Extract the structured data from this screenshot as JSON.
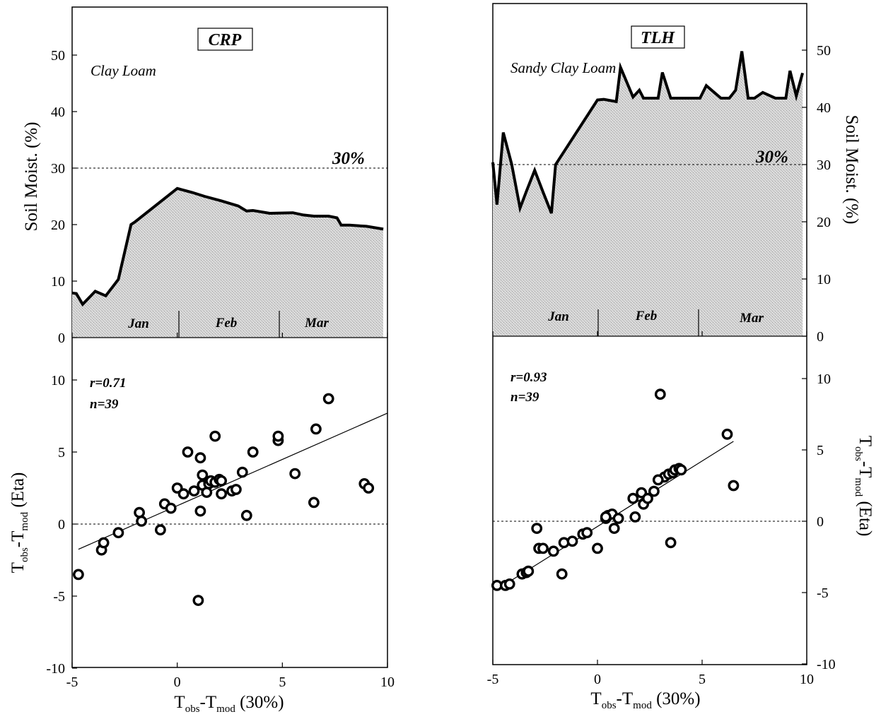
{
  "colors": {
    "ink": "#000000",
    "shade": "#c9c9c9"
  },
  "chart_data": [
    {
      "type": "area",
      "panel": "CRP soil moisture",
      "site_label": "CRP",
      "soil_label": "Clay Loam",
      "ylabel": "Soil Moist. (%)",
      "ylim": [
        0,
        60
      ],
      "yticks": [
        0,
        10,
        20,
        30,
        40,
        50
      ],
      "threshold": 30,
      "threshold_label": "30%",
      "months": [
        "Jan",
        "Feb",
        "Mar"
      ],
      "series": [
        {
          "x": [
            -5.0,
            -4.8,
            -4.5,
            -3.9,
            -3.4,
            -2.8,
            -2.2,
            -2.0,
            0.0,
            0.2,
            0.7,
            1.3,
            2.1,
            2.9,
            3.3,
            3.6,
            4.4,
            5.5,
            6.0,
            6.5,
            7.2,
            7.6,
            7.8,
            8.2,
            9.0,
            9.8
          ],
          "values": [
            7.9,
            7.8,
            5.9,
            8.2,
            7.4,
            10.3,
            20.0,
            20.5,
            26.4,
            26.2,
            25.7,
            25.0,
            24.2,
            23.3,
            22.4,
            22.5,
            22.0,
            22.1,
            21.7,
            21.5,
            21.5,
            21.2,
            19.9,
            19.9,
            19.7,
            19.2
          ]
        }
      ]
    },
    {
      "type": "scatter",
      "panel": "CRP comparison",
      "annotation": [
        "r=0.71",
        "n=39"
      ],
      "xlabel_main": "T",
      "xlabel_sub1": "obs",
      "xlabel_dash": "-T",
      "xlabel_sub2": "mod",
      "xlabel_tail": " (30%)",
      "ylabel_main": "T",
      "ylabel_sub1": "obs",
      "ylabel_dash": "-T",
      "ylabel_sub2": "mod",
      "ylabel_tail": " (Eta)",
      "xlim": [
        -5,
        10
      ],
      "ylim": [
        -10,
        10
      ],
      "xticks": [
        -5,
        0,
        5,
        10
      ],
      "yticks": [
        -10,
        -5,
        0,
        5,
        10
      ],
      "fit": {
        "x": [
          -4.7,
          10
        ],
        "y": [
          -1.75,
          7.7
        ]
      },
      "points": {
        "x": [
          -4.7,
          -3.6,
          -3.5,
          -2.8,
          -1.8,
          -1.7,
          -0.8,
          -0.6,
          -0.3,
          0.0,
          0.3,
          0.5,
          0.8,
          1.0,
          1.1,
          1.2,
          1.1,
          1.2,
          1.4,
          1.5,
          1.6,
          1.8,
          2.0,
          2.1,
          2.1,
          2.6,
          2.8,
          3.1,
          3.3,
          3.6,
          4.8,
          4.8,
          5.6,
          6.5,
          6.6,
          7.2,
          8.9,
          9.1,
          1.8
        ],
        "y": [
          -3.5,
          -1.8,
          -1.3,
          -0.6,
          0.8,
          0.2,
          -0.4,
          1.4,
          1.1,
          2.5,
          2.1,
          5.0,
          2.3,
          -5.3,
          0.9,
          3.4,
          4.6,
          2.7,
          2.2,
          2.8,
          3.0,
          2.9,
          3.1,
          2.1,
          3.0,
          2.3,
          2.4,
          3.6,
          0.6,
          5.0,
          5.8,
          6.1,
          3.5,
          1.5,
          6.6,
          8.7,
          2.8,
          2.5,
          6.1
        ]
      }
    },
    {
      "type": "area",
      "panel": "TLH soil moisture",
      "site_label": "TLH",
      "soil_label": "Sandy Clay Loam",
      "ylabel": "Soil Moist. (%)",
      "ylim": [
        0,
        60
      ],
      "yticks": [
        0,
        10,
        20,
        30,
        40,
        50
      ],
      "threshold": 30,
      "threshold_label": "30%",
      "months": [
        "Jan",
        "Feb",
        "Mar"
      ],
      "series": [
        {
          "x": [
            -5.0,
            -4.8,
            -4.5,
            -4.1,
            -3.7,
            -3.4,
            -3.0,
            -2.6,
            -2.2,
            -2.0,
            0.0,
            0.3,
            0.9,
            1.1,
            1.7,
            2.0,
            2.2,
            2.4,
            2.9,
            3.1,
            3.5,
            4.0,
            4.9,
            5.2,
            5.9,
            6.3,
            6.6,
            6.9,
            7.2,
            7.5,
            7.9,
            8.5,
            9.0,
            9.2,
            9.5,
            9.8
          ],
          "values": [
            30.4,
            23.0,
            35.6,
            30.1,
            22.4,
            25.3,
            29.0,
            25.2,
            21.5,
            30.0,
            41.3,
            41.4,
            41.0,
            47.0,
            41.8,
            43.0,
            41.6,
            41.6,
            41.6,
            46.1,
            41.6,
            41.6,
            41.6,
            43.8,
            41.6,
            41.6,
            43.0,
            49.8,
            41.6,
            41.6,
            42.6,
            41.6,
            41.6,
            46.4,
            42.0,
            46.0
          ]
        }
      ]
    },
    {
      "type": "scatter",
      "panel": "TLH comparison",
      "annotation": [
        "r=0.93",
        "n=39"
      ],
      "xlabel_main": "T",
      "xlabel_sub1": "obs",
      "xlabel_dash": "-T",
      "xlabel_sub2": "mod",
      "xlabel_tail": " (30%)",
      "ylabel_main": "T",
      "ylabel_sub1": "obs",
      "ylabel_dash": "-T",
      "ylabel_sub2": "mod",
      "ylabel_tail": " (Eta)",
      "xlim": [
        -5,
        10
      ],
      "ylim": [
        -10,
        10
      ],
      "xticks": [
        -5,
        0,
        5,
        10
      ],
      "yticks": [
        -10,
        -5,
        0,
        5,
        10
      ],
      "fit": {
        "x": [
          -4.5,
          6.5
        ],
        "y": [
          -4.5,
          5.6
        ]
      },
      "points": {
        "x": [
          -4.8,
          -4.4,
          -4.2,
          -3.6,
          -3.4,
          -3.3,
          -2.9,
          -2.8,
          -2.6,
          -2.1,
          -1.6,
          -1.2,
          -1.7,
          -0.7,
          0.0,
          0.4,
          0.5,
          0.7,
          0.8,
          1.7,
          1.8,
          2.1,
          2.2,
          2.7,
          3.2,
          3.4,
          3.6,
          3.7,
          3.9,
          4.0,
          3.0,
          6.2,
          6.5,
          2.9,
          0.4,
          -0.5,
          1.0,
          2.4,
          3.5
        ],
        "y": [
          -4.5,
          -4.5,
          -4.4,
          -3.7,
          -3.6,
          -3.5,
          -0.5,
          -1.9,
          -1.9,
          -2.1,
          -1.5,
          -1.4,
          -3.7,
          -0.9,
          -1.9,
          0.2,
          0.4,
          0.5,
          -0.5,
          1.6,
          0.3,
          2.0,
          1.2,
          2.1,
          3.1,
          3.3,
          3.4,
          3.6,
          3.7,
          3.6,
          8.9,
          6.1,
          2.5,
          2.9,
          0.3,
          -0.8,
          0.2,
          1.6,
          -1.5
        ]
      }
    }
  ]
}
